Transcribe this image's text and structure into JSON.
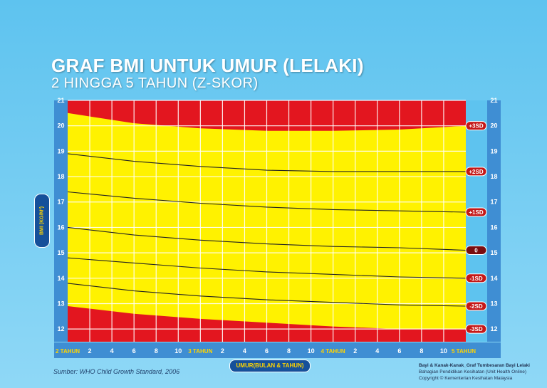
{
  "header": {
    "title": "GRAF BMI UNTUK UMUR (LELAKI)",
    "subtitle": "2 HINGGA 5 TAHUN (Z-SKOR)"
  },
  "footer": {
    "source": "Sumber: WHO Child Growth Standard, 2006",
    "xaxis_label": "UMUR(BULAN & TAHUN)",
    "yaxis_label": "BMI (KG/M²)",
    "credit_line1": "Bayi & Kanak-Kanak_Graf Tumbesaran Bayi Lelaki",
    "credit_line2": "Bahagian Pendidikan Kesihatan (Unit Health Online)",
    "credit_line3": "Copyright © Kementerian Kesihatan Malaysia"
  },
  "colors": {
    "red_zone": "#e3161f",
    "yellow_zone": "#fff200",
    "top_white": "#ffffff",
    "axis_bar": "#3f8ed3",
    "grid": "#ffffff",
    "label_red": "#c51818",
    "label_dark": "#7a0d10"
  },
  "chart_data": {
    "type": "line",
    "xlabel": "UMUR(BULAN & TAHUN)",
    "ylabel": "BMI (KG/M²)",
    "x_unit": "months",
    "xlim": [
      24,
      60
    ],
    "ylim": [
      11.5,
      21
    ],
    "y_ticks": [
      12,
      13,
      14,
      15,
      16,
      17,
      18,
      19,
      20,
      21
    ],
    "x_ticks": [
      {
        "month": 24,
        "label": "2 TAHUN"
      },
      {
        "month": 26,
        "label": "2"
      },
      {
        "month": 28,
        "label": "4"
      },
      {
        "month": 30,
        "label": "6"
      },
      {
        "month": 32,
        "label": "8"
      },
      {
        "month": 34,
        "label": "10"
      },
      {
        "month": 36,
        "label": "3 TAHUN"
      },
      {
        "month": 38,
        "label": "2"
      },
      {
        "month": 40,
        "label": "4"
      },
      {
        "month": 42,
        "label": "6"
      },
      {
        "month": 44,
        "label": "8"
      },
      {
        "month": 46,
        "label": "10"
      },
      {
        "month": 48,
        "label": "4 TAHUN"
      },
      {
        "month": 50,
        "label": "2"
      },
      {
        "month": 52,
        "label": "4"
      },
      {
        "month": 54,
        "label": "6"
      },
      {
        "month": 56,
        "label": "8"
      },
      {
        "month": 58,
        "label": "10"
      },
      {
        "month": 60,
        "label": "5 TAHUN"
      }
    ],
    "x": [
      24,
      30,
      36,
      42,
      48,
      54,
      60
    ],
    "series": [
      {
        "name": "+3SD",
        "values": [
          20.5,
          20.1,
          19.9,
          19.8,
          19.8,
          19.85,
          20.0
        ],
        "style": "fill-boundary"
      },
      {
        "name": "+2SD",
        "values": [
          18.9,
          18.6,
          18.4,
          18.25,
          18.2,
          18.2,
          18.2
        ],
        "style": "line"
      },
      {
        "name": "+1SD",
        "values": [
          17.4,
          17.15,
          16.95,
          16.8,
          16.7,
          16.65,
          16.6
        ],
        "style": "line"
      },
      {
        "name": "0",
        "values": [
          16.0,
          15.7,
          15.5,
          15.35,
          15.25,
          15.2,
          15.1
        ],
        "style": "line"
      },
      {
        "name": "-1SD",
        "values": [
          14.8,
          14.6,
          14.4,
          14.25,
          14.15,
          14.05,
          14.0
        ],
        "style": "line"
      },
      {
        "name": "-2SD",
        "values": [
          13.8,
          13.5,
          13.3,
          13.15,
          13.05,
          12.95,
          12.9
        ],
        "style": "line"
      },
      {
        "name": "-3SD",
        "values": [
          12.9,
          12.6,
          12.4,
          12.25,
          12.1,
          12.0,
          12.0
        ],
        "style": "fill-boundary"
      }
    ]
  }
}
